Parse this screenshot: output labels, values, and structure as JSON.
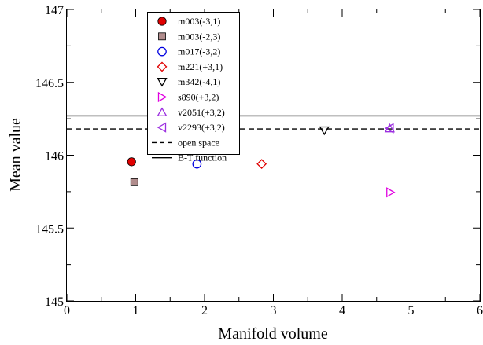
{
  "chart_data": {
    "type": "scatter",
    "title": "",
    "xlabel": "Manifold volume",
    "ylabel": "Mean value",
    "xlim": [
      0,
      6
    ],
    "ylim": [
      145,
      147
    ],
    "grid": false,
    "legend_position": "top-center",
    "x_ticks": [
      {
        "value": 0,
        "label": "0"
      },
      {
        "value": 1,
        "label": "1"
      },
      {
        "value": 2,
        "label": "2"
      },
      {
        "value": 3,
        "label": "3"
      },
      {
        "value": 4,
        "label": "4"
      },
      {
        "value": 5,
        "label": "5"
      },
      {
        "value": 6,
        "label": "6"
      }
    ],
    "y_ticks": [
      {
        "value": 145,
        "label": "145"
      },
      {
        "value": 145.5,
        "label": "145.5"
      },
      {
        "value": 146,
        "label": "146"
      },
      {
        "value": 146.5,
        "label": "146.5"
      },
      {
        "value": 147,
        "label": "147"
      }
    ],
    "series": [
      {
        "name": "m003(-3,1)",
        "marker": "circle-filled",
        "color": "#e00000",
        "points": [
          {
            "x": 0.94,
            "y": 145.955
          }
        ]
      },
      {
        "name": "m003(-2,3)",
        "marker": "square-filled",
        "color": "#b08c8c",
        "points": [
          {
            "x": 0.98,
            "y": 145.815
          }
        ]
      },
      {
        "name": "m017(-3,2)",
        "marker": "circle-open",
        "color": "#0000e0",
        "points": [
          {
            "x": 1.89,
            "y": 145.94
          }
        ]
      },
      {
        "name": "m221(+3,1)",
        "marker": "diamond-open",
        "color": "#e00000",
        "points": [
          {
            "x": 2.83,
            "y": 145.94
          }
        ]
      },
      {
        "name": "m342(-4,1)",
        "marker": "triangle-down-open",
        "color": "#000000",
        "points": [
          {
            "x": 3.74,
            "y": 146.17
          }
        ]
      },
      {
        "name": "s890(+3,2)",
        "marker": "triangle-right-open",
        "color": "#e000e0",
        "points": [
          {
            "x": 4.7,
            "y": 145.745
          }
        ]
      },
      {
        "name": "v2051(+3,2)",
        "marker": "triangle-up-open",
        "color": "#9c30e0",
        "points": [
          {
            "x": 4.69,
            "y": 146.185
          }
        ]
      },
      {
        "name": "v2293(+3,2)",
        "marker": "triangle-left-open",
        "color": "#9c30e0",
        "points": [
          {
            "x": 4.69,
            "y": 146.185
          }
        ]
      }
    ],
    "reference_lines": [
      {
        "name": "open space",
        "style": "dashed",
        "color": "#000000",
        "y": 146.18
      },
      {
        "name": "B-T function",
        "style": "solid",
        "color": "#000000",
        "y": 146.27
      }
    ]
  }
}
